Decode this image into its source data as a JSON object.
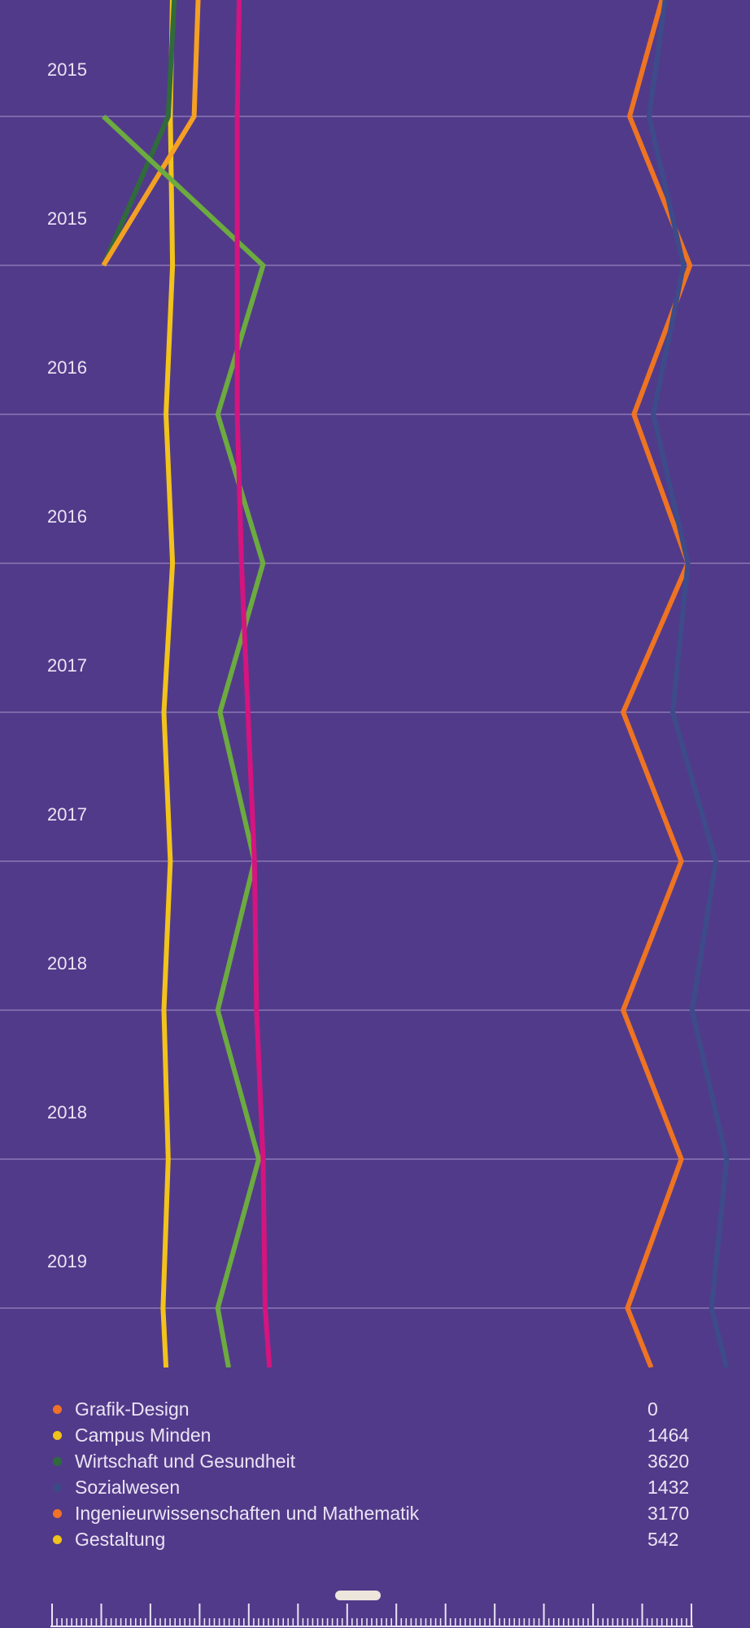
{
  "chart_data": {
    "type": "line",
    "orientation": "vertical-time",
    "title": "",
    "xlabel": "",
    "ylabel": "",
    "grid": true,
    "legend_position": "bottom",
    "time_axis": [
      "2015",
      "2015",
      "2015",
      "2016",
      "2016",
      "2017",
      "2017",
      "2018",
      "2018",
      "2019",
      "2019"
    ],
    "series": [
      {
        "name": "Grafik-Design",
        "value": "0",
        "legend_color": "#f07228",
        "color": "#ee7422",
        "values": [
          1540,
          1460,
          1600,
          1470,
          1595,
          1445,
          1580,
          1445,
          1580,
          1455,
          1510
        ]
      },
      {
        "name": "Campus Minden",
        "value": "1464",
        "legend_color": "#f2c319",
        "color": "#f1c31b",
        "values": [
          400,
          395,
          400,
          385,
          400,
          380,
          395,
          380,
          390,
          378,
          385
        ]
      },
      {
        "name": "Wirtschaft und Gesundheit",
        "value": "3620",
        "legend_color": "#2f6a3c",
        "color": "#2f6b3b",
        "values": [
          405,
          390,
          240,
          null,
          null,
          null,
          null,
          null,
          null,
          null,
          null
        ]
      },
      {
        "name": "Sozialwesen",
        "value": "1432",
        "legend_color": "#3b4a86",
        "color": "#3d4b8a",
        "values": [
          1545,
          1505,
          1585,
          1515,
          1595,
          1560,
          1660,
          1605,
          1685,
          1650,
          1685
        ]
      },
      {
        "name": "Ingenieurwissenschaften und Mathematik",
        "value": "3170",
        "legend_color": "#f07228",
        "color": "#f4a023",
        "values": [
          460,
          450,
          240,
          null,
          null,
          null,
          null,
          null,
          null,
          null,
          null
        ]
      },
      {
        "name": "Gestaltung",
        "value": "542",
        "legend_color": "#f2c319",
        "color": "#6cab3f",
        "values": [
          null,
          240,
          610,
          505,
          610,
          510,
          590,
          505,
          600,
          505,
          530
        ]
      },
      {
        "name": "",
        "value": "",
        "color": "#d5147f",
        "values": [
          555,
          550,
          550,
          550,
          560,
          575,
          590,
          595,
          610,
          615,
          625
        ]
      }
    ]
  },
  "legend": {
    "items": [
      {
        "name": "Grafik-Design",
        "value": "0",
        "color": "#f07228"
      },
      {
        "name": "Campus Minden",
        "value": "1464",
        "color": "#f2c319"
      },
      {
        "name": "Wirtschaft und Gesundheit",
        "value": "3620",
        "color": "#2f6a3c"
      },
      {
        "name": "Sozialwesen",
        "value": "1432",
        "color": "#3b4a86"
      },
      {
        "name": "Ingenieurwissenschaften und Mathematik",
        "value": "3170",
        "color": "#f07228"
      },
      {
        "name": "Gestaltung",
        "value": "542",
        "color": "#f2c319"
      }
    ]
  },
  "year_labels": [
    "2015",
    "2015",
    "2016",
    "2016",
    "2017",
    "2017",
    "2018",
    "2018",
    "2019"
  ],
  "colors": {
    "background": "#523a8a",
    "gridline": "#8a78b4",
    "text": "#eae4f4",
    "scrubber_handle": "#ece6dd",
    "ruler": "#eae4f4"
  },
  "scrubber": {
    "position": 0.478
  }
}
